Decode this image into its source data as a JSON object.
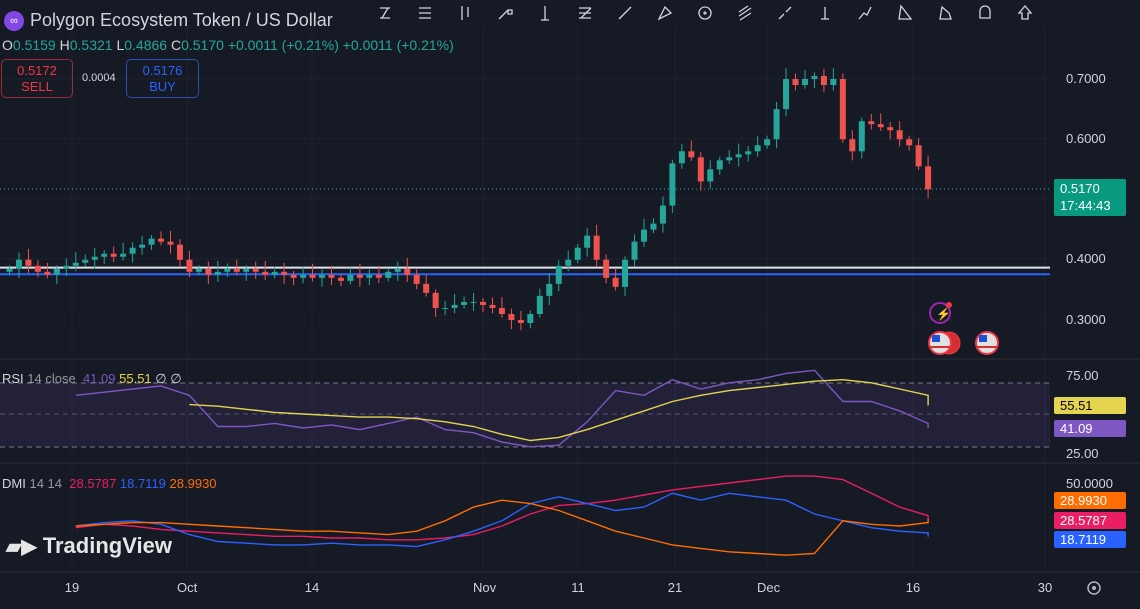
{
  "header": {
    "title": "Polygon Ecosystem Token / US Dollar",
    "logo": "polygon-logo",
    "ohlc": {
      "o_label": "O",
      "o": "0.5159",
      "h_label": "H",
      "h": "0.5321",
      "l_label": "L",
      "l": "0.4866",
      "c_label": "C",
      "c": "0.5170",
      "change1": "+0.0011 (+0.21%)",
      "change2": "+0.0011 (+0.21%)"
    }
  },
  "trade": {
    "sell_price": "0.5172",
    "sell_label": "SELL",
    "spread": "0.0004",
    "buy_price": "0.5176",
    "buy_label": "BUY"
  },
  "toolbar": {
    "icons": [
      "trend-line-icon",
      "horizontal-lines-icon",
      "candles-icon",
      "ray-icon",
      "vertical-line-icon",
      "fib-icon",
      "line-icon",
      "pitchfork-icon",
      "circle-icon",
      "parallel-channel-icon",
      "segment-icon",
      "measure-icon",
      "path-icon",
      "triangle-icon",
      "pattern-icon",
      "shape-icon",
      "arrow-up-icon"
    ]
  },
  "price_axis": {
    "labels": [
      "0.7000",
      "0.6000",
      "0.4000",
      "0.3000"
    ],
    "current_price": "0.5170",
    "countdown": "17:44:43"
  },
  "rsi": {
    "name": "RSI",
    "params": "14 close",
    "value": "41.09",
    "ma_value": "55.51",
    "extra1": "∅",
    "extra2": "∅",
    "axis": [
      "75.00",
      "25.00"
    ]
  },
  "dmi": {
    "name": "DMI",
    "params": "14 14",
    "plus": "28.5787",
    "minus": "18.7119",
    "adx": "28.9930",
    "axis": [
      "50.0000"
    ]
  },
  "time_axis": [
    "19",
    "Oct",
    "14",
    "Nov",
    "11",
    "21",
    "Dec",
    "16",
    "30"
  ],
  "watermark": "TradingView",
  "colors": {
    "up": "#26a69a",
    "down": "#ef5350",
    "rsi": "#7e57c2",
    "rsi_ma": "#e5d44f",
    "plus_di": "#e91e63",
    "minus_di": "#2962ff",
    "adx": "#ff6d00"
  },
  "chart_data": {
    "type": "candlestick",
    "start": "Sep 12",
    "interval": "1D",
    "closes": [
      0.385,
      0.4,
      0.39,
      0.38,
      0.375,
      0.385,
      0.39,
      0.395,
      0.4,
      0.405,
      0.41,
      0.405,
      0.41,
      0.42,
      0.425,
      0.435,
      0.43,
      0.425,
      0.4,
      0.38,
      0.385,
      0.375,
      0.38,
      0.385,
      0.38,
      0.385,
      0.38,
      0.375,
      0.38,
      0.375,
      0.37,
      0.375,
      0.37,
      0.375,
      0.37,
      0.365,
      0.375,
      0.37,
      0.375,
      0.37,
      0.38,
      0.385,
      0.375,
      0.36,
      0.345,
      0.32,
      0.32,
      0.325,
      0.33,
      0.33,
      0.325,
      0.32,
      0.31,
      0.3,
      0.295,
      0.31,
      0.34,
      0.36,
      0.39,
      0.4,
      0.42,
      0.44,
      0.4,
      0.37,
      0.355,
      0.4,
      0.43,
      0.45,
      0.46,
      0.49,
      0.56,
      0.58,
      0.57,
      0.53,
      0.55,
      0.565,
      0.57,
      0.575,
      0.58,
      0.59,
      0.6,
      0.65,
      0.7,
      0.69,
      0.7,
      0.705,
      0.69,
      0.7,
      0.6,
      0.58,
      0.63,
      0.625,
      0.62,
      0.615,
      0.6,
      0.59,
      0.555,
      0.517
    ],
    "horizontal_levels": [
      0.387,
      0.376
    ],
    "rsi": {
      "start": "Sep 19",
      "step_days": 3,
      "values": [
        62,
        64,
        66,
        68,
        62,
        42,
        42,
        44,
        41,
        43,
        40,
        44,
        48,
        40,
        38,
        32,
        29,
        30,
        45,
        65,
        62,
        72,
        66,
        70,
        72,
        76,
        78,
        58,
        58,
        52,
        44,
        41.09
      ]
    },
    "rsi_ma": {
      "start": "Oct 1",
      "step_days": 3,
      "values": [
        56,
        55,
        53,
        51,
        50,
        49,
        48,
        48,
        47,
        45,
        42,
        37,
        33,
        35,
        40,
        46,
        52,
        58,
        62,
        65,
        67,
        69,
        71,
        72,
        70,
        66,
        62,
        55.51
      ]
    },
    "dmi_plus": {
      "start": "Sep 19",
      "step_days": 3,
      "values": [
        24,
        26,
        25,
        23,
        22,
        21,
        20,
        19,
        19,
        18,
        18,
        17,
        17,
        18,
        20,
        25,
        32,
        37,
        38,
        40,
        43,
        46,
        48,
        50,
        52,
        54,
        54,
        52,
        44,
        36,
        31,
        28.58
      ]
    },
    "dmi_minus": {
      "start": "Sep 19",
      "step_days": 3,
      "values": [
        25,
        27,
        28,
        26,
        20,
        16,
        15,
        14,
        14,
        15,
        14,
        14,
        13,
        17,
        22,
        28,
        38,
        42,
        38,
        34,
        36,
        44,
        40,
        44,
        42,
        40,
        32,
        28,
        24,
        22,
        21,
        18.71
      ]
    },
    "adx": {
      "start": "Sep 19",
      "step_days": 3,
      "values": [
        25,
        26,
        27,
        27,
        26,
        25,
        24,
        23,
        22,
        22,
        21,
        20,
        22,
        28,
        36,
        40,
        38,
        34,
        28,
        22,
        18,
        14,
        12,
        10,
        9,
        8,
        9,
        28,
        26,
        25,
        27,
        28.99
      ]
    }
  }
}
